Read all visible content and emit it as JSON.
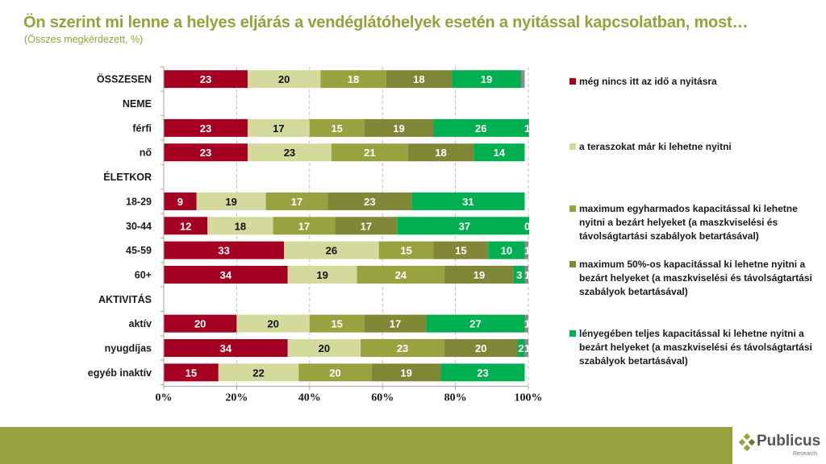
{
  "header": {
    "title": "Ön szerint mi lenne a helyes eljárás a vendéglátóhelyek esetén a nyitással kapcsolatban, most…",
    "subtitle": "(Összes megkérdezett, %)"
  },
  "chart_data": {
    "type": "bar",
    "orientation": "horizontal",
    "stacked": "percent",
    "title": "Ön szerint mi lenne a helyes eljárás a vendéglátóhelyek esetén a nyitással kapcsolatban, most…",
    "subtitle": "(Összes megkérdezett, %)",
    "xlabel": "",
    "ylabel": "",
    "xlim": [
      0,
      100
    ],
    "x_ticks": [
      "0%",
      "20%",
      "40%",
      "60%",
      "80%",
      "100%"
    ],
    "grid": "vertical dashed",
    "legend_position": "right",
    "rows": [
      {
        "label": "ÖSSZESEN",
        "header": false,
        "values": [
          23,
          20,
          18,
          18,
          19,
          1
        ]
      },
      {
        "label": "NEME",
        "header": true,
        "values": null
      },
      {
        "label": "férfi",
        "header": false,
        "values": [
          23,
          17,
          15,
          19,
          26,
          1
        ]
      },
      {
        "label": "nő",
        "header": false,
        "values": [
          23,
          23,
          21,
          18,
          14,
          0
        ]
      },
      {
        "label": "ÉLETKOR",
        "header": true,
        "values": null
      },
      {
        "label": "18-29",
        "header": false,
        "values": [
          9,
          19,
          17,
          23,
          31,
          0
        ]
      },
      {
        "label": "30-44",
        "header": false,
        "values": [
          12,
          18,
          17,
          17,
          37,
          0
        ]
      },
      {
        "label": "45-59",
        "header": false,
        "values": [
          33,
          26,
          15,
          15,
          10,
          1
        ]
      },
      {
        "label": "60+",
        "header": false,
        "values": [
          34,
          19,
          24,
          19,
          3,
          1
        ]
      },
      {
        "label": "AKTIVITÁS",
        "header": true,
        "values": null
      },
      {
        "label": "aktív",
        "header": false,
        "values": [
          20,
          20,
          15,
          17,
          27,
          1
        ]
      },
      {
        "label": "nyugdíjas",
        "header": false,
        "values": [
          34,
          20,
          23,
          20,
          2,
          1
        ]
      },
      {
        "label": "egyéb inaktív",
        "header": false,
        "values": [
          15,
          22,
          20,
          19,
          23,
          0
        ]
      }
    ],
    "series": [
      {
        "name": "még nincs itt az idő a nyitásra",
        "color": "#a50021",
        "label_color": "#ffffff",
        "in_legend": true
      },
      {
        "name": "a teraszokat már ki lehetne nyitni",
        "color": "#d4d99c",
        "label_color": "#111111",
        "in_legend": true
      },
      {
        "name": "maximum egyharmados kapacitással ki lehetne nyitni a bezárt helyeket (a maszkviselési és távolságtartási szabályok betartásával)",
        "color": "#98a23e",
        "label_color": "#ffffff",
        "in_legend": true
      },
      {
        "name": "maximum 50%-os kapacitással ki lehetne nyitni a bezárt helyeket (a maszkviselési és távolságtartási szabályok betartásával)",
        "color": "#808838",
        "label_color": "#ffffff",
        "in_legend": true
      },
      {
        "name": "lényegében teljes kapacitással ki lehetne nyitni a bezárt helyeket (a maszkviselési és távolságtartási szabályok betartásával)",
        "color": "#00b050",
        "label_color": "#ffffff",
        "in_legend": true
      },
      {
        "name": "",
        "color": "#8c8c8c",
        "label_color": "#ffffff",
        "in_legend": false
      }
    ]
  },
  "legend": {
    "items": [
      {
        "label": "még nincs itt az idő a nyitásra",
        "color": "#a50021"
      },
      {
        "label": "a teraszokat már ki lehetne nyitni",
        "color": "#d4d99c"
      },
      {
        "label": "maximum egyharmados kapacitással ki lehetne nyitni a bezárt helyeket (a maszkviselési és távolságtartási szabályok betartásával)",
        "color": "#98a23e"
      },
      {
        "label": "maximum 50%-os kapacitással ki lehetne nyitni a bezárt helyeket (a maszkviselési és távolságtartási szabályok betartásával)",
        "color": "#808838"
      },
      {
        "label": "lényegében teljes kapacitással ki lehetne nyitni a bezárt helyeket (a maszkviselési és távolságtartási szabályok betartásával)",
        "color": "#00b050"
      }
    ]
  },
  "footer": {
    "brand": "Publicus",
    "brand_sub": "Research",
    "band_color": "#98a23e"
  }
}
